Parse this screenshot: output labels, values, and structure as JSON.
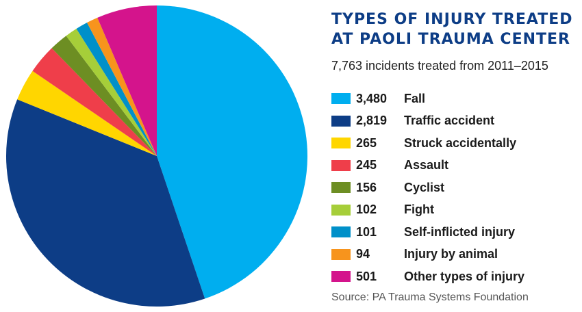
{
  "chart_data": {
    "type": "pie",
    "title": "TYPES OF INJURY TREATED AT PAOLI TRAUMA CENTER",
    "subtitle": "7,763 incidents treated from 2011–2015",
    "source": "Source: PA Trauma Systems Foundation",
    "slices": [
      {
        "label": "Fall",
        "value": 3480,
        "display": "3,480",
        "color": "#00aeef"
      },
      {
        "label": "Traffic accident",
        "value": 2819,
        "display": "2,819",
        "color": "#0d3d86"
      },
      {
        "label": "Struck accidentally",
        "value": 265,
        "display": "265",
        "color": "#ffd600"
      },
      {
        "label": "Assault",
        "value": 245,
        "display": "245",
        "color": "#ef3e4a"
      },
      {
        "label": "Cyclist",
        "value": 156,
        "display": "156",
        "color": "#6d8e23"
      },
      {
        "label": "Fight",
        "value": 102,
        "display": "102",
        "color": "#a6ce39"
      },
      {
        "label": "Self-inflicted injury",
        "value": 101,
        "display": "101",
        "color": "#0090c9"
      },
      {
        "label": "Injury by animal",
        "value": 94,
        "display": "94",
        "color": "#f7941d"
      },
      {
        "label": "Other types of injury",
        "value": 501,
        "display": "501",
        "color": "#d4148c"
      }
    ],
    "legend_position": "right"
  }
}
